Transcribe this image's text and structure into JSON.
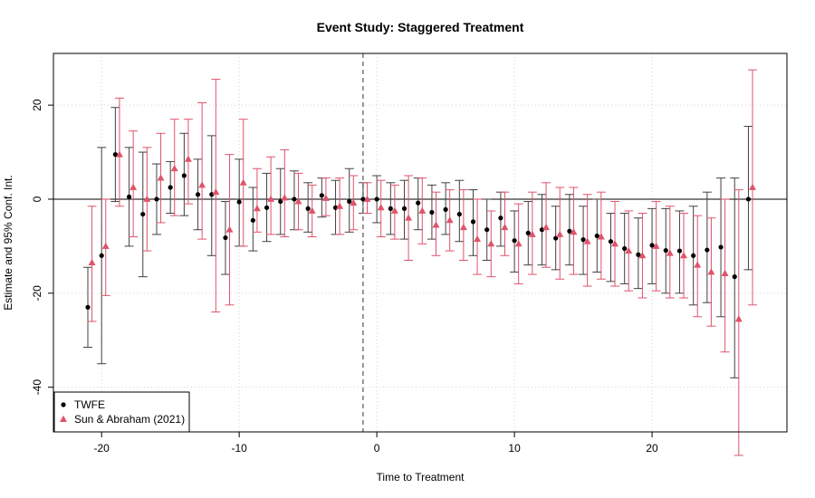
{
  "chart_data": {
    "type": "scatter",
    "title": "Event Study: Staggered Treatment",
    "xlabel": "Time to Treatment",
    "ylabel": "Estimate and 95% Conf. Int.",
    "xlim": [
      -23.5,
      29.8
    ],
    "ylim": [
      -49.5,
      31
    ],
    "x_ticks": [
      -20,
      -10,
      0,
      10,
      20
    ],
    "y_ticks": [
      -40,
      -20,
      0,
      20
    ],
    "x_tick_labels": [
      "-20",
      "-10",
      "0",
      "10",
      "20"
    ],
    "y_tick_labels": [
      "-40",
      "-20",
      "0",
      "20"
    ],
    "grid": true,
    "reference_lines": {
      "horizontal": 0,
      "vertical": -1
    },
    "legend_position": "bottom-left",
    "legend": [
      {
        "name": "TWFE",
        "marker": "circle",
        "color": "#000000"
      },
      {
        "name": "Sun & Abraham (2021)",
        "marker": "triangle",
        "color": "#DF536B"
      }
    ],
    "series": [
      {
        "name": "TWFE",
        "color": "#000000",
        "line_color": "#404040",
        "marker": "circle",
        "x": [
          -21,
          -20,
          -19,
          -18,
          -17,
          -16,
          -15,
          -14,
          -13,
          -12,
          -11,
          -10,
          -9,
          -8,
          -7,
          -6,
          -5,
          -4,
          -3,
          -2,
          -1,
          0,
          1,
          2,
          3,
          4,
          5,
          6,
          7,
          8,
          9,
          10,
          11,
          12,
          13,
          14,
          15,
          16,
          17,
          18,
          19,
          20,
          21,
          22,
          23,
          24,
          25,
          26,
          27
        ],
        "y": [
          -23,
          -12,
          9.5,
          0.5,
          -3.2,
          0,
          2.5,
          5,
          1,
          1,
          -8.2,
          -0.6,
          -4.5,
          -1.8,
          -0.5,
          0,
          -2,
          0.8,
          -1.8,
          -0.5,
          0,
          0,
          -2,
          -2,
          -0.8,
          -2.8,
          -2.2,
          -3.2,
          -4.8,
          -6.5,
          -4,
          -8.8,
          -7.2,
          -6.5,
          -8.3,
          -6.8,
          -8.6,
          -7.8,
          -9,
          -10.5,
          -11.8,
          -9.8,
          -10.9,
          -11,
          -12,
          -10.8,
          -10.2,
          -16.5,
          0
        ],
        "lower": [
          -31.5,
          -35,
          -0.5,
          -10,
          -16.5,
          -7.5,
          -3,
          -3.5,
          -6.5,
          -12,
          -16,
          -10,
          -11,
          -9,
          -7.5,
          -6.5,
          -7,
          -3.8,
          -7.5,
          -7,
          -3,
          -5,
          -7.5,
          -8.5,
          -6.5,
          -8.5,
          -7.5,
          -9,
          -12,
          -13,
          -10,
          -15.5,
          -14,
          -14,
          -15,
          -14,
          -16,
          -15.5,
          -17.5,
          -18,
          -19,
          -18,
          -20,
          -20,
          -22.5,
          -22,
          -25,
          -38,
          -15
        ],
        "upper": [
          -14.5,
          11,
          19.5,
          11,
          10,
          7.5,
          8,
          14,
          8.5,
          13.5,
          -0.5,
          8.5,
          2.5,
          5.5,
          6.5,
          6,
          3.5,
          4.5,
          4,
          6.5,
          3.5,
          5,
          3.5,
          4,
          4.5,
          3,
          3.5,
          4,
          2,
          0,
          1.5,
          -2.5,
          -0.5,
          1,
          -1.5,
          1,
          -1.5,
          0,
          -3,
          -3,
          -4,
          -2,
          -2,
          -2.5,
          -1.5,
          1.5,
          4.5,
          4.5,
          15.5
        ]
      },
      {
        "name": "Sun & Abraham (2021)",
        "color": "#DF536B",
        "line_color": "#DF536B",
        "marker": "triangle",
        "x": [
          -20.7,
          -19.7,
          -18.7,
          -17.7,
          -16.7,
          -15.7,
          -14.7,
          -13.7,
          -12.7,
          -11.7,
          -10.7,
          -9.7,
          -8.7,
          -7.7,
          -6.7,
          -5.7,
          -4.7,
          -3.7,
          -2.7,
          -1.7,
          -0.7,
          0.3,
          1.3,
          2.3,
          3.3,
          4.3,
          5.3,
          6.3,
          7.3,
          8.3,
          9.3,
          10.3,
          11.3,
          12.3,
          13.3,
          14.3,
          15.3,
          16.3,
          17.3,
          18.3,
          19.3,
          20.3,
          21.3,
          22.3,
          23.3,
          24.3,
          25.3,
          26.3,
          27.3
        ],
        "y": [
          -13.5,
          -10,
          9.5,
          2.5,
          0,
          4.5,
          6.5,
          8.5,
          3,
          1.5,
          -6.5,
          3.5,
          -2,
          0,
          0.3,
          -0.5,
          -2.5,
          0.2,
          -1.5,
          -0.8,
          0,
          -1.8,
          -2.5,
          -4,
          -2.5,
          -5.5,
          -4.5,
          -6,
          -8.5,
          -9.5,
          -6,
          -9.5,
          -7.5,
          -6,
          -7.5,
          -7,
          -9,
          -8,
          -9.5,
          -11,
          -12,
          -10,
          -11.5,
          -12,
          -14,
          -15.5,
          -15.8,
          -25.5,
          2.5
        ],
        "lower": [
          -26,
          -20.5,
          -1.5,
          -8,
          -11,
          -5,
          -3.5,
          -1,
          -8.5,
          -24,
          -22.5,
          -10,
          -7,
          -7.5,
          -8,
          -6.5,
          -8,
          -3.5,
          -7.5,
          -6.5,
          -3,
          -8,
          -8.5,
          -13,
          -9.5,
          -12,
          -11,
          -13,
          -16,
          -16.5,
          -12,
          -18,
          -16,
          -14.5,
          -17,
          -16,
          -18.5,
          -17,
          -18.5,
          -19.5,
          -21,
          -19.5,
          -21,
          -21,
          -25,
          -27,
          -32.5,
          -54.5,
          -22.5
        ],
        "upper": [
          -1.5,
          0,
          21.5,
          14.5,
          11,
          14,
          17,
          17,
          20.5,
          25.5,
          9.5,
          17,
          6.5,
          9,
          10.5,
          5.5,
          3,
          4.5,
          4.5,
          5,
          3.5,
          4,
          3,
          5,
          4.5,
          1.5,
          2,
          2,
          0,
          -2.5,
          1.5,
          -1,
          1.5,
          3.5,
          2.5,
          2.5,
          1,
          1.5,
          -0.5,
          -2.5,
          -3,
          -0.5,
          -1.5,
          -3,
          -3.5,
          -4,
          0,
          2,
          27.5
        ]
      }
    ]
  }
}
